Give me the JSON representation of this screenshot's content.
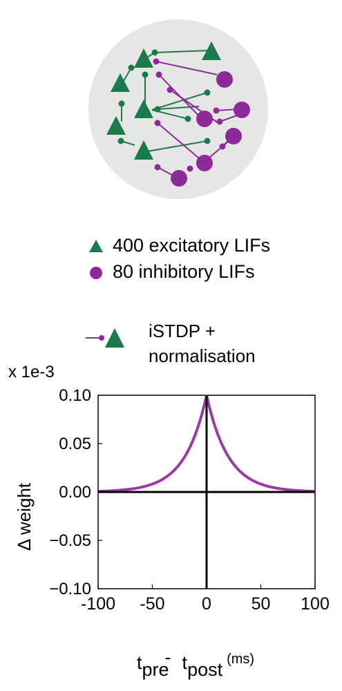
{
  "legend": {
    "excitatory_label": "400 excitatory LIFs",
    "inhibitory_label": "80 inhibitory LIFs"
  },
  "rule": {
    "line1": "iSTDP +",
    "line2": "normalisation"
  },
  "colors": {
    "excitatory": "#1a7a4a",
    "inhibitory": "#8c2b98",
    "curve": "#9b3aa6",
    "background_disc": "#e6e6e6"
  },
  "chart_data": {
    "type": "line",
    "scale_label": "x 1e-3",
    "ylabel": "Δ weight",
    "xlabel_parts": {
      "t1": "t",
      "sub1": "pre",
      "dash": "-",
      "t2": "t",
      "sub2": "post",
      "unit": "(ms)"
    },
    "xlim": [
      -100,
      100
    ],
    "ylim": [
      -0.1,
      0.1
    ],
    "xticks": [
      -100,
      -50,
      0,
      50,
      100
    ],
    "xtick_labels": [
      "-100",
      "-50",
      "0",
      "50",
      "100"
    ],
    "yticks": [
      0.1,
      0.05,
      0.0,
      -0.05,
      -0.1
    ],
    "ytick_labels": [
      "0.10",
      "0.05",
      "0.00",
      "−0.05",
      "−0.10"
    ],
    "series": [
      {
        "function": "0.1 * exp(-|t| / 20)",
        "x": [
          -100,
          -80,
          -60,
          -40,
          -30,
          -20,
          -10,
          -5,
          0,
          5,
          10,
          20,
          30,
          40,
          60,
          80,
          100
        ],
        "y": [
          0.0007,
          0.0018,
          0.005,
          0.0135,
          0.0223,
          0.0368,
          0.0607,
          0.0779,
          0.1,
          0.0779,
          0.0607,
          0.0368,
          0.0223,
          0.0135,
          0.005,
          0.0018,
          0.0007
        ]
      }
    ]
  }
}
